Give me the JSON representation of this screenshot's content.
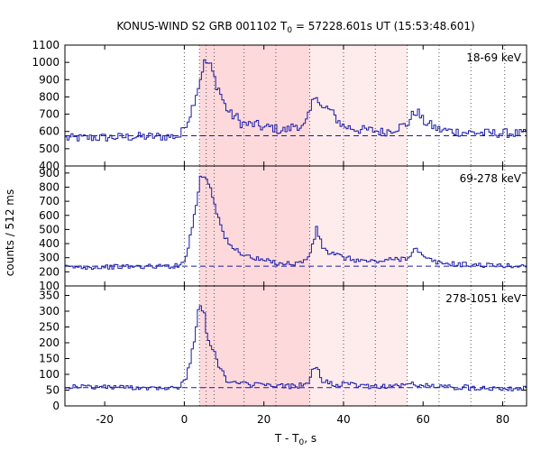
{
  "chart_data": {
    "type": "line",
    "title_parts": [
      "KONUS-WIND S2 GRB 001102 T",
      "0",
      " = 57228.601s UT (15:53:48.601)"
    ],
    "xlabel_parts": [
      "T - T",
      "0",
      ", s"
    ],
    "ylabel": "counts / 512 ms",
    "xlim": [
      -30,
      86
    ],
    "xticks": [
      -20,
      0,
      20,
      40,
      60,
      80
    ],
    "time_bin_s": 0.512,
    "line_color": "#1a1aa8",
    "shade_color_dark": "#fdd9dc",
    "shade_color_light": "#feebec",
    "shaded_dark_range": [
      3.8,
      31.5
    ],
    "shaded_light_range": [
      31.5,
      56.0
    ],
    "vertical_dotted_lines": [
      0,
      3.8,
      5.5,
      7.5,
      15.0,
      23.0,
      31.5,
      40.0,
      48.0,
      56.0,
      64.0,
      72.0,
      80.5
    ],
    "panels": [
      {
        "band": "18-69 keV",
        "ylim": [
          400,
          1100
        ],
        "yticks": [
          400,
          500,
          600,
          700,
          800,
          900,
          1000,
          1100
        ],
        "background": 575,
        "series": [
          {
            "t": -30,
            "v": 560
          },
          {
            "t": -20,
            "v": 565
          },
          {
            "t": -10,
            "v": 570
          },
          {
            "t": -1,
            "v": 572
          },
          {
            "t": 0.2,
            "v": 640
          },
          {
            "t": 1,
            "v": 670
          },
          {
            "t": 2,
            "v": 740
          },
          {
            "t": 3,
            "v": 820
          },
          {
            "t": 4,
            "v": 900
          },
          {
            "t": 4.8,
            "v": 990
          },
          {
            "t": 5.5,
            "v": 1000
          },
          {
            "t": 6.3,
            "v": 990
          },
          {
            "t": 7,
            "v": 950
          },
          {
            "t": 8,
            "v": 880
          },
          {
            "t": 9,
            "v": 830
          },
          {
            "t": 10,
            "v": 760
          },
          {
            "t": 11,
            "v": 720
          },
          {
            "t": 12,
            "v": 690
          },
          {
            "t": 13,
            "v": 690
          },
          {
            "t": 14,
            "v": 650
          },
          {
            "t": 16,
            "v": 640
          },
          {
            "t": 18,
            "v": 640
          },
          {
            "t": 20,
            "v": 620
          },
          {
            "t": 22,
            "v": 625
          },
          {
            "t": 24,
            "v": 605
          },
          {
            "t": 26,
            "v": 610
          },
          {
            "t": 28,
            "v": 640
          },
          {
            "t": 30,
            "v": 620
          },
          {
            "t": 31.5,
            "v": 700
          },
          {
            "t": 32.5,
            "v": 790
          },
          {
            "t": 33.2,
            "v": 830
          },
          {
            "t": 34,
            "v": 760
          },
          {
            "t": 35,
            "v": 720
          },
          {
            "t": 36,
            "v": 740
          },
          {
            "t": 38,
            "v": 680
          },
          {
            "t": 40,
            "v": 630
          },
          {
            "t": 44,
            "v": 610
          },
          {
            "t": 48,
            "v": 605
          },
          {
            "t": 50,
            "v": 595
          },
          {
            "t": 52,
            "v": 610
          },
          {
            "t": 54,
            "v": 625
          },
          {
            "t": 56,
            "v": 640
          },
          {
            "t": 57.5,
            "v": 700
          },
          {
            "t": 58.5,
            "v": 720
          },
          {
            "t": 60,
            "v": 660
          },
          {
            "t": 64,
            "v": 610
          },
          {
            "t": 70,
            "v": 595
          },
          {
            "t": 76,
            "v": 590
          },
          {
            "t": 82,
            "v": 590
          },
          {
            "t": 86,
            "v": 585
          }
        ]
      },
      {
        "band": "69-278 keV",
        "ylim": [
          100,
          950
        ],
        "yticks": [
          100,
          200,
          300,
          400,
          500,
          600,
          700,
          800,
          900
        ],
        "background": 240,
        "series": [
          {
            "t": -30,
            "v": 232
          },
          {
            "t": -20,
            "v": 235
          },
          {
            "t": -10,
            "v": 238
          },
          {
            "t": -1,
            "v": 242
          },
          {
            "t": 0.2,
            "v": 300
          },
          {
            "t": 1,
            "v": 380
          },
          {
            "t": 2,
            "v": 520
          },
          {
            "t": 3,
            "v": 680
          },
          {
            "t": 4,
            "v": 860
          },
          {
            "t": 4.8,
            "v": 890
          },
          {
            "t": 5.5,
            "v": 860
          },
          {
            "t": 6.3,
            "v": 830
          },
          {
            "t": 7,
            "v": 760
          },
          {
            "t": 8,
            "v": 650
          },
          {
            "t": 9,
            "v": 540
          },
          {
            "t": 10,
            "v": 460
          },
          {
            "t": 11,
            "v": 400
          },
          {
            "t": 12,
            "v": 370
          },
          {
            "t": 14,
            "v": 340
          },
          {
            "t": 16,
            "v": 310
          },
          {
            "t": 18,
            "v": 290
          },
          {
            "t": 20,
            "v": 280
          },
          {
            "t": 22,
            "v": 270
          },
          {
            "t": 24,
            "v": 262
          },
          {
            "t": 26,
            "v": 258
          },
          {
            "t": 28,
            "v": 262
          },
          {
            "t": 30,
            "v": 270
          },
          {
            "t": 31.5,
            "v": 320
          },
          {
            "t": 32.5,
            "v": 420
          },
          {
            "t": 33.2,
            "v": 500
          },
          {
            "t": 34,
            "v": 440
          },
          {
            "t": 35,
            "v": 360
          },
          {
            "t": 36,
            "v": 340
          },
          {
            "t": 38,
            "v": 320
          },
          {
            "t": 40,
            "v": 300
          },
          {
            "t": 44,
            "v": 280
          },
          {
            "t": 48,
            "v": 272
          },
          {
            "t": 52,
            "v": 285
          },
          {
            "t": 56,
            "v": 300
          },
          {
            "t": 57.5,
            "v": 350
          },
          {
            "t": 58.5,
            "v": 360
          },
          {
            "t": 60,
            "v": 300
          },
          {
            "t": 64,
            "v": 262
          },
          {
            "t": 70,
            "v": 252
          },
          {
            "t": 76,
            "v": 246
          },
          {
            "t": 82,
            "v": 242
          },
          {
            "t": 86,
            "v": 240
          }
        ]
      },
      {
        "band": "278-1051 keV",
        "ylim": [
          0,
          380
        ],
        "yticks": [
          0,
          50,
          100,
          150,
          200,
          250,
          300,
          350
        ],
        "background": 58,
        "series": [
          {
            "t": -30,
            "v": 62
          },
          {
            "t": -20,
            "v": 60
          },
          {
            "t": -10,
            "v": 58
          },
          {
            "t": -1,
            "v": 60
          },
          {
            "t": 0.2,
            "v": 80
          },
          {
            "t": 1,
            "v": 120
          },
          {
            "t": 2,
            "v": 170
          },
          {
            "t": 3,
            "v": 260
          },
          {
            "t": 3.8,
            "v": 340
          },
          {
            "t": 4.6,
            "v": 300
          },
          {
            "t": 5.4,
            "v": 260
          },
          {
            "t": 6.2,
            "v": 200
          },
          {
            "t": 7,
            "v": 180
          },
          {
            "t": 8,
            "v": 150
          },
          {
            "t": 9,
            "v": 120
          },
          {
            "t": 10,
            "v": 95
          },
          {
            "t": 11,
            "v": 80
          },
          {
            "t": 12,
            "v": 70
          },
          {
            "t": 14,
            "v": 72
          },
          {
            "t": 16,
            "v": 66
          },
          {
            "t": 18,
            "v": 68
          },
          {
            "t": 20,
            "v": 64
          },
          {
            "t": 24,
            "v": 63
          },
          {
            "t": 28,
            "v": 62
          },
          {
            "t": 31.5,
            "v": 80
          },
          {
            "t": 32.5,
            "v": 115
          },
          {
            "t": 33.2,
            "v": 128
          },
          {
            "t": 34,
            "v": 95
          },
          {
            "t": 35,
            "v": 78
          },
          {
            "t": 38,
            "v": 68
          },
          {
            "t": 42,
            "v": 66
          },
          {
            "t": 48,
            "v": 62
          },
          {
            "t": 54,
            "v": 64
          },
          {
            "t": 58,
            "v": 70
          },
          {
            "t": 60,
            "v": 64
          },
          {
            "t": 66,
            "v": 60
          },
          {
            "t": 72,
            "v": 58
          },
          {
            "t": 78,
            "v": 57
          },
          {
            "t": 86,
            "v": 55
          }
        ]
      }
    ]
  }
}
